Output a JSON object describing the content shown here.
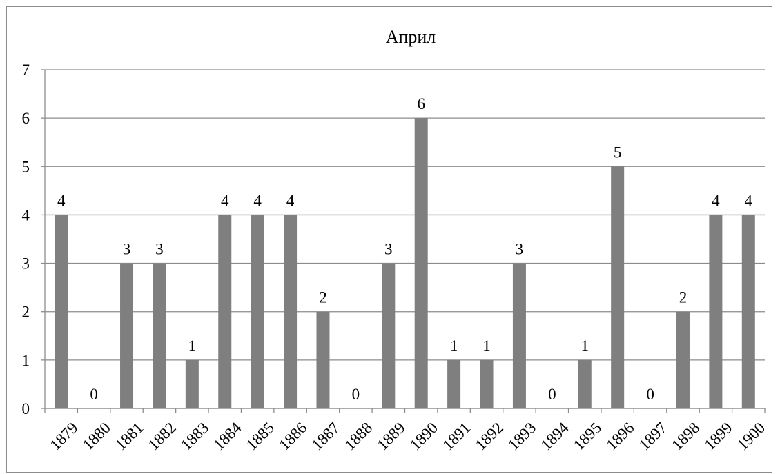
{
  "chart_data": {
    "type": "bar",
    "title": "Април",
    "categories": [
      "1879",
      "1880",
      "1881",
      "1882",
      "1883",
      "1884",
      "1885",
      "1886",
      "1887",
      "1888",
      "1889",
      "1890",
      "1891",
      "1892",
      "1893",
      "1894",
      "1895",
      "1896",
      "1897",
      "1898",
      "1899",
      "1900"
    ],
    "series": [
      {
        "values": [
          4,
          0,
          3,
          3,
          1,
          4,
          4,
          4,
          2,
          0,
          3,
          6,
          1,
          1,
          3,
          0,
          1,
          5,
          0,
          2,
          4,
          4
        ]
      }
    ],
    "ylim": [
      0,
      7
    ],
    "yticks": [
      "0",
      "1",
      "2",
      "3",
      "4",
      "5",
      "6",
      "7"
    ],
    "grid": true,
    "legend": "none",
    "data_labels": true,
    "bar_color": "#7f7f7f",
    "grid_color": "#8c8c8c"
  }
}
